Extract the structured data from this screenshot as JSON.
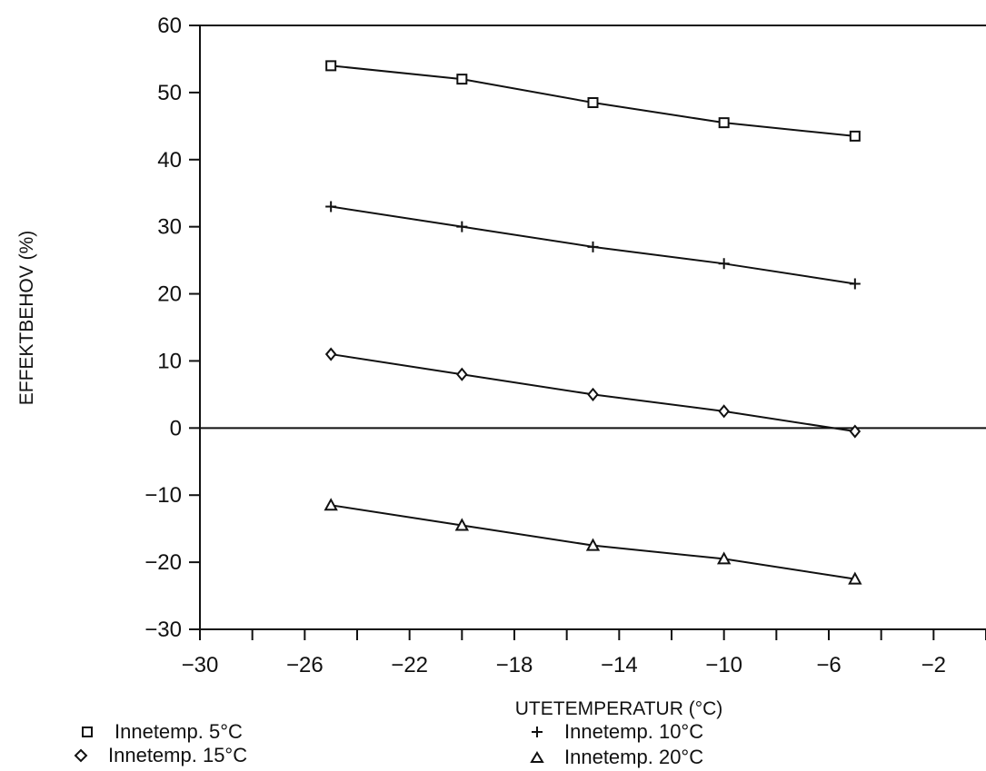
{
  "chart_data": {
    "type": "line",
    "title": "",
    "xlabel": "UTETEMPERATUR (°C)",
    "ylabel": "EFFEKTBEHOV  (%)",
    "xlim": [
      -30,
      0
    ],
    "ylim": [
      -30,
      60
    ],
    "x_ticks": [
      -30,
      -26,
      -22,
      -18,
      -14,
      -10,
      -6,
      -2
    ],
    "y_ticks": [
      60,
      50,
      40,
      30,
      20,
      10,
      0,
      -10,
      -20,
      -30
    ],
    "grid": false,
    "zero_line": true,
    "legend_position": "bottom",
    "series": [
      {
        "name": "Innetemp. 5°C",
        "marker": "square",
        "x": [
          -25,
          -20,
          -15,
          -10,
          -5
        ],
        "values": [
          54,
          52,
          48.5,
          45.5,
          43.5
        ]
      },
      {
        "name": "Innetemp. 10°C",
        "marker": "plus",
        "x": [
          -25,
          -20,
          -15,
          -10,
          -5
        ],
        "values": [
          33,
          30,
          27,
          24.5,
          21.5
        ]
      },
      {
        "name": "Innetemp. 15°C",
        "marker": "diamond",
        "x": [
          -25,
          -20,
          -15,
          -10,
          -5
        ],
        "values": [
          11,
          8,
          5,
          2.5,
          -0.5
        ]
      },
      {
        "name": "Innetemp. 20°C",
        "marker": "triangle",
        "x": [
          -25,
          -20,
          -15,
          -10,
          -5
        ],
        "values": [
          -11.5,
          -14.5,
          -17.5,
          -19.5,
          -22.5
        ]
      }
    ]
  }
}
